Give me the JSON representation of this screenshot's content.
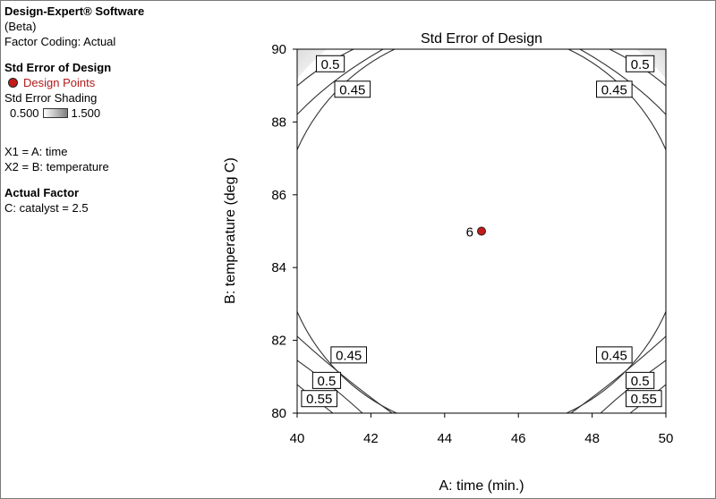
{
  "info": {
    "software": "Design-Expert® Software",
    "beta": "(Beta)",
    "coding": "Factor Coding: Actual",
    "response": "Std Error of Design",
    "design_points": "Design Points",
    "shading_label": "Std Error Shading",
    "shading_min": "0.500",
    "shading_max": "1.500",
    "x1": "X1 = A: time",
    "x2": "X2 = B: temperature",
    "actual_factor_heading": "Actual Factor",
    "actual_factor_value": "C: catalyst = 2.5"
  },
  "chart_data": {
    "type": "contour",
    "title": "Std Error of Design",
    "xlabel": "A: time (min.)",
    "ylabel": "B: temperature (deg C)",
    "xlim": [
      40,
      50
    ],
    "ylim": [
      80,
      90
    ],
    "xticks": [
      40,
      42,
      44,
      46,
      48,
      50
    ],
    "yticks": [
      80,
      82,
      84,
      86,
      88,
      90
    ],
    "contour_labels": [
      {
        "text": "0.5",
        "x": 40.9,
        "y": 89.6
      },
      {
        "text": "0.45",
        "x": 41.5,
        "y": 88.9
      },
      {
        "text": "0.5",
        "x": 49.3,
        "y": 89.6
      },
      {
        "text": "0.45",
        "x": 48.6,
        "y": 88.9
      },
      {
        "text": "0.45",
        "x": 41.4,
        "y": 81.6
      },
      {
        "text": "0.5",
        "x": 40.8,
        "y": 80.9
      },
      {
        "text": "0.55",
        "x": 40.6,
        "y": 80.4
      },
      {
        "text": "0.45",
        "x": 48.6,
        "y": 81.6
      },
      {
        "text": "0.5",
        "x": 49.3,
        "y": 80.9
      },
      {
        "text": "0.55",
        "x": 49.4,
        "y": 80.4
      }
    ],
    "design_points": [
      {
        "x": 45,
        "y": 85,
        "label": "6"
      }
    ],
    "colors": {
      "point": "#c41a1a",
      "shade_light": "#ffffff",
      "shade_dark": "#e4e4e4"
    }
  }
}
